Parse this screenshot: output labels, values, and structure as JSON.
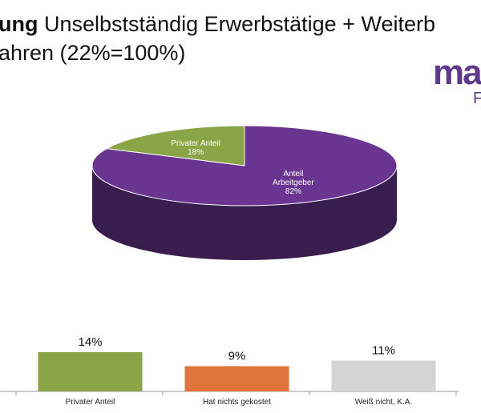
{
  "title": {
    "bold": "ung",
    "rest": "Unselbstständig Erwerbstätige + Weiterb",
    "line2": "ahren (22%=100%)"
  },
  "logo": {
    "text": "ma",
    "sub": "F"
  },
  "colors": {
    "purple": "#6a3590",
    "green": "#8aa547",
    "orange": "#e0733a",
    "gray": "#d4d4d4"
  },
  "chart_data": [
    {
      "type": "pie",
      "slices": [
        {
          "label": [
            "Privater Anteil",
            "18%"
          ],
          "value": 18,
          "color": "#8aa547"
        },
        {
          "label": [
            "Anteil",
            "Arbeitgeber",
            "82%"
          ],
          "value": 82,
          "color": "#6a3590"
        }
      ]
    },
    {
      "type": "bar",
      "categories": [
        "Privater Anteil",
        "Hat nichts gekostet",
        "Weiß nicht, K.A."
      ],
      "values": [
        14,
        9,
        11
      ],
      "value_labels": [
        "14%",
        "9%",
        "11%"
      ],
      "colors": [
        "#8aa547",
        "#e0733a",
        "#d4d4d4"
      ]
    }
  ]
}
